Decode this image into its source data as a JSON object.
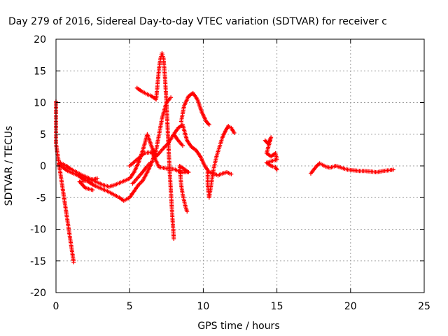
{
  "chart_data": {
    "type": "scatter",
    "title": "Day 279 of 2016, Sidereal Day-to-day VTEC variation (SDTVAR) for receiver c",
    "xlabel": "GPS time / hours",
    "ylabel": "SDTVAR / TECUs",
    "xlim": [
      0,
      25
    ],
    "ylim": [
      -20,
      20
    ],
    "xticks": [
      0,
      5,
      10,
      15,
      20,
      25
    ],
    "yticks": [
      -20,
      -15,
      -10,
      -5,
      0,
      5,
      10,
      15,
      20
    ],
    "grid": true,
    "marker": "plus",
    "color": "#ff0000",
    "series": [
      {
        "points": [
          [
            0.0,
            10.2
          ],
          [
            0.0,
            9.0
          ],
          [
            0.0,
            6.5
          ],
          [
            0.0,
            3.5
          ],
          [
            1.2,
            -15.2
          ]
        ]
      },
      {
        "points": [
          [
            0.2,
            0.3
          ],
          [
            0.5,
            -0.3
          ],
          [
            0.8,
            -0.8
          ],
          [
            1.2,
            -1.2
          ],
          [
            1.5,
            -1.5
          ],
          [
            1.8,
            -2.0
          ],
          [
            2.2,
            -2.5
          ],
          [
            2.6,
            -3.1
          ],
          [
            3.0,
            -3.5
          ],
          [
            3.5,
            -4.0
          ],
          [
            3.9,
            -4.5
          ],
          [
            4.3,
            -5.0
          ],
          [
            4.6,
            -5.5
          ],
          [
            5.0,
            -5.0
          ],
          [
            5.3,
            -4.0
          ],
          [
            5.6,
            -3.0
          ],
          [
            5.9,
            -2.3
          ],
          [
            6.2,
            -1.0
          ],
          [
            6.5,
            0.5
          ],
          [
            6.8,
            2.5
          ],
          [
            7.0,
            5.0
          ],
          [
            7.2,
            7.5
          ],
          [
            7.5,
            10.0
          ],
          [
            7.8,
            10.8
          ]
        ]
      },
      {
        "points": [
          [
            0.3,
            0.5
          ],
          [
            0.7,
            0.0
          ],
          [
            1.0,
            -0.5
          ],
          [
            1.4,
            -1.0
          ],
          [
            1.8,
            -1.5
          ],
          [
            2.3,
            -2.0
          ],
          [
            2.7,
            -2.5
          ],
          [
            3.2,
            -3.0
          ],
          [
            3.6,
            -3.3
          ],
          [
            4.0,
            -3.0
          ],
          [
            4.5,
            -2.5
          ],
          [
            5.0,
            -2.0
          ],
          [
            5.3,
            -1.0
          ],
          [
            5.6,
            0.5
          ],
          [
            5.9,
            2.5
          ],
          [
            6.2,
            5.0
          ],
          [
            6.5,
            3.0
          ],
          [
            6.8,
            1.5
          ],
          [
            7.0,
            2.0
          ],
          [
            7.3,
            2.8
          ],
          [
            7.6,
            3.5
          ],
          [
            8.0,
            5.0
          ],
          [
            8.3,
            6.0
          ],
          [
            8.6,
            6.5
          ],
          [
            8.9,
            4.0
          ],
          [
            9.2,
            3.0
          ],
          [
            9.5,
            2.5
          ],
          [
            9.8,
            1.5
          ],
          [
            10.1,
            0.0
          ],
          [
            10.4,
            -1.0
          ],
          [
            10.7,
            -1.2
          ],
          [
            11.0,
            -1.5
          ],
          [
            11.3,
            -1.2
          ],
          [
            11.6,
            -1.0
          ],
          [
            11.9,
            -1.3
          ]
        ]
      },
      {
        "points": [
          [
            1.5,
            -1.5
          ],
          [
            2.0,
            -2.0
          ],
          [
            2.5,
            -2.3
          ],
          [
            2.8,
            -2.0
          ],
          [
            1.6,
            -2.5
          ],
          [
            1.8,
            -3.0
          ],
          [
            2.0,
            -3.5
          ],
          [
            2.5,
            -3.8
          ]
        ]
      },
      {
        "points": [
          [
            5.5,
            12.3
          ],
          [
            5.8,
            11.8
          ],
          [
            6.2,
            11.3
          ],
          [
            6.5,
            11.0
          ],
          [
            6.8,
            10.5
          ],
          [
            6.9,
            13.0
          ],
          [
            7.0,
            15.5
          ],
          [
            7.1,
            17.0
          ],
          [
            7.2,
            17.8
          ],
          [
            7.3,
            17.0
          ],
          [
            7.4,
            14.0
          ],
          [
            7.5,
            10.0
          ],
          [
            7.6,
            5.0
          ],
          [
            7.7,
            0.0
          ],
          [
            7.8,
            -4.0
          ],
          [
            7.9,
            -8.0
          ],
          [
            8.0,
            -11.5
          ]
        ]
      },
      {
        "points": [
          [
            5.0,
            0.0
          ],
          [
            5.5,
            1.0
          ],
          [
            6.0,
            2.0
          ],
          [
            6.5,
            2.2
          ],
          [
            7.0,
            -0.2
          ],
          [
            7.5,
            -0.4
          ],
          [
            8.0,
            -0.5
          ],
          [
            8.5,
            -1.0
          ],
          [
            9.0,
            -1.0
          ],
          [
            8.4,
            0.0
          ],
          [
            8.5,
            -3.0
          ],
          [
            8.6,
            -4.5
          ],
          [
            8.7,
            -5.5
          ],
          [
            8.8,
            -6.5
          ],
          [
            8.9,
            -7.2
          ]
        ]
      },
      {
        "points": [
          [
            5.2,
            -2.8
          ],
          [
            5.5,
            -2.0
          ],
          [
            5.8,
            -1.2
          ],
          [
            6.1,
            -0.3
          ],
          [
            6.4,
            0.5
          ]
        ]
      },
      {
        "points": [
          [
            8.5,
            7.0
          ],
          [
            8.7,
            9.5
          ],
          [
            9.0,
            11.0
          ],
          [
            9.3,
            11.5
          ],
          [
            9.6,
            10.5
          ],
          [
            9.9,
            8.5
          ],
          [
            10.2,
            7.0
          ],
          [
            10.4,
            6.5
          ]
        ]
      },
      {
        "points": [
          [
            8.0,
            5.0
          ],
          [
            8.3,
            4.0
          ],
          [
            8.6,
            3.2
          ]
        ]
      },
      {
        "points": [
          [
            10.3,
            -1.0
          ],
          [
            10.3,
            -3.0
          ],
          [
            10.4,
            -5.0
          ],
          [
            10.5,
            -3.5
          ],
          [
            10.7,
            -0.5
          ],
          [
            10.9,
            1.5
          ],
          [
            11.1,
            3.0
          ],
          [
            11.3,
            4.5
          ],
          [
            11.5,
            5.5
          ],
          [
            11.7,
            6.3
          ],
          [
            11.9,
            6.0
          ],
          [
            12.1,
            5.2
          ]
        ]
      },
      {
        "points": [
          [
            14.2,
            4.0
          ],
          [
            14.4,
            3.5
          ],
          [
            14.6,
            4.5
          ],
          [
            14.3,
            2.0
          ],
          [
            14.6,
            1.5
          ],
          [
            14.9,
            2.0
          ],
          [
            15.0,
            1.0
          ],
          [
            14.3,
            0.5
          ],
          [
            14.6,
            0.0
          ],
          [
            14.9,
            -0.2
          ],
          [
            15.0,
            -0.6
          ]
        ]
      },
      {
        "points": [
          [
            17.3,
            -1.2
          ],
          [
            17.5,
            -0.6
          ],
          [
            17.7,
            0.0
          ],
          [
            17.9,
            0.4
          ],
          [
            18.3,
            -0.1
          ],
          [
            18.6,
            -0.3
          ],
          [
            19.0,
            0.0
          ],
          [
            19.4,
            -0.3
          ],
          [
            19.8,
            -0.6
          ],
          [
            20.2,
            -0.7
          ],
          [
            20.6,
            -0.8
          ],
          [
            21.0,
            -0.8
          ],
          [
            21.4,
            -0.9
          ],
          [
            21.8,
            -1.0
          ],
          [
            22.2,
            -0.8
          ],
          [
            22.6,
            -0.7
          ],
          [
            22.9,
            -0.6
          ]
        ]
      }
    ]
  }
}
